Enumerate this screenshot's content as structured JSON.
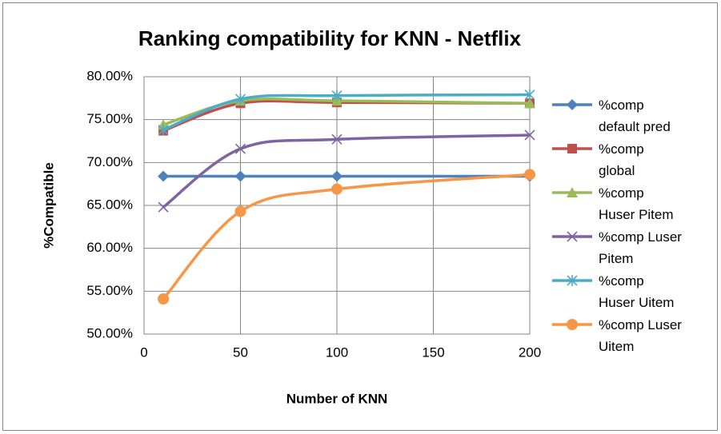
{
  "chart_data": {
    "type": "line",
    "smooth": true,
    "title": "Ranking compatibility for KNN - Netflix",
    "x_label": "Number of KNN",
    "y_label": "%Compatible",
    "x": [
      10,
      50,
      100,
      200
    ],
    "xlim": [
      0,
      200
    ],
    "xticks": [
      0,
      50,
      100,
      150,
      200
    ],
    "ylim": [
      50,
      80
    ],
    "yticks": [
      {
        "value": 50,
        "label": "50.00%"
      },
      {
        "value": 55,
        "label": "55.00%"
      },
      {
        "value": 60,
        "label": "60.00%"
      },
      {
        "value": 65,
        "label": "65.00%"
      },
      {
        "value": 70,
        "label": "70.00%"
      },
      {
        "value": 75,
        "label": "75.00%"
      },
      {
        "value": 80,
        "label": "80.00%"
      }
    ],
    "grid": true,
    "legend": "right",
    "series": [
      {
        "name": "%comp default pred",
        "color": "#4f81bd",
        "marker": "diamond",
        "values": [
          68.4,
          68.4,
          68.4,
          68.4
        ]
      },
      {
        "name": "%comp global",
        "color": "#c0504d",
        "marker": "square",
        "values": [
          73.7,
          76.9,
          77.0,
          76.9
        ]
      },
      {
        "name": "%comp Huser Pitem",
        "color": "#9bbb59",
        "marker": "triangle",
        "values": [
          74.4,
          77.2,
          77.2,
          76.9
        ]
      },
      {
        "name": "%comp Luser Pitem",
        "color": "#8064a2",
        "marker": "x",
        "values": [
          64.8,
          71.6,
          72.7,
          73.2
        ]
      },
      {
        "name": "%comp Huser Uitem",
        "color": "#4bacc6",
        "marker": "star",
        "values": [
          73.8,
          77.4,
          77.8,
          77.9
        ]
      },
      {
        "name": "%comp Luser Uitem",
        "color": "#f79646",
        "marker": "circle",
        "values": [
          54.1,
          64.3,
          66.9,
          68.6
        ]
      }
    ]
  }
}
